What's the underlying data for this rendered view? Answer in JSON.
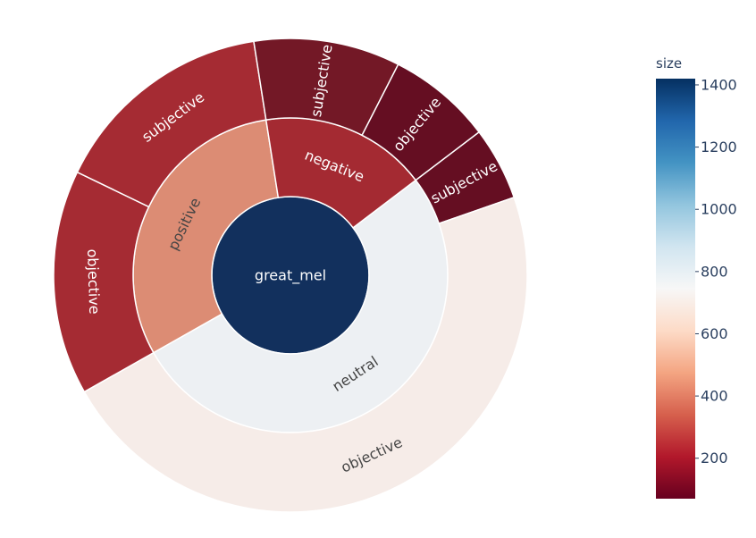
{
  "chart_data": {
    "type": "sunburst",
    "colorbar": {
      "title": "size",
      "range": [
        70,
        1420
      ],
      "ticks": [
        200,
        400,
        600,
        800,
        1000,
        1200,
        1400
      ],
      "colorscale": [
        "#67001f",
        "#b2182b",
        "#d6604d",
        "#f4a582",
        "#fddbc7",
        "#f7f7f7",
        "#d1e5f0",
        "#92c5de",
        "#4393c3",
        "#2166ac",
        "#053061"
      ]
    },
    "nodes": [
      {
        "id": "root",
        "label": "great_mel",
        "parent": "",
        "value": 1400,
        "color": "#12305d",
        "text_color": "#ffffff"
      },
      {
        "id": "neutral",
        "label": "neutral",
        "parent": "root",
        "value": 730,
        "color": "#edf0f3",
        "text_color": "#444444"
      },
      {
        "id": "positive",
        "label": "positive",
        "parent": "root",
        "value": 430,
        "color": "#dc8c74",
        "text_color": "#444444"
      },
      {
        "id": "negative",
        "label": "negative",
        "parent": "root",
        "value": 240,
        "color": "#a42a32",
        "text_color": "#ffffff"
      },
      {
        "id": "neutral-subjective",
        "label": "subjective",
        "parent": "neutral",
        "value": 70,
        "color": "#650e22",
        "text_color": "#ffffff"
      },
      {
        "id": "neutral-objective",
        "label": "objective",
        "parent": "neutral",
        "value": 660,
        "color": "#f6ece8",
        "text_color": "#444444"
      },
      {
        "id": "positive-objective",
        "label": "objective",
        "parent": "positive",
        "value": 215,
        "color": "#a52b33",
        "text_color": "#ffffff"
      },
      {
        "id": "positive-subjective",
        "label": "subjective",
        "parent": "positive",
        "value": 215,
        "color": "#a52b33",
        "text_color": "#ffffff"
      },
      {
        "id": "negative-subjective",
        "label": "subjective",
        "parent": "negative",
        "value": 140,
        "color": "#731826",
        "text_color": "#ffffff"
      },
      {
        "id": "negative-objective",
        "label": "objective",
        "parent": "negative",
        "value": 100,
        "color": "#650e22",
        "text_color": "#ffffff"
      }
    ]
  }
}
